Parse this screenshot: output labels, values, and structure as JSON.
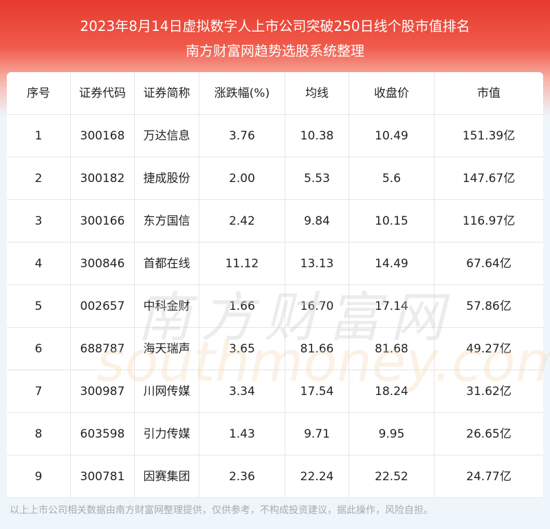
{
  "header": {
    "title": "2023年8月14日虚拟数字人上市公司突破250日线个股市值排名",
    "subtitle": "南方财富网趋势选股系统整理"
  },
  "table": {
    "columns": [
      "序号",
      "证券代码",
      "证券简称",
      "涨跌幅(%)",
      "均线",
      "收盘价",
      "市值"
    ],
    "rows": [
      [
        "1",
        "300168",
        "万达信息",
        "3.76",
        "10.38",
        "10.49",
        "151.39亿"
      ],
      [
        "2",
        "300182",
        "捷成股份",
        "2.00",
        "5.53",
        "5.6",
        "147.67亿"
      ],
      [
        "3",
        "300166",
        "东方国信",
        "2.42",
        "9.84",
        "10.15",
        "116.97亿"
      ],
      [
        "4",
        "300846",
        "首都在线",
        "11.12",
        "13.13",
        "14.49",
        "67.64亿"
      ],
      [
        "5",
        "002657",
        "中科金财",
        "1.66",
        "16.70",
        "17.14",
        "57.86亿"
      ],
      [
        "6",
        "688787",
        "海天瑞声",
        "3.65",
        "81.66",
        "81.68",
        "49.27亿"
      ],
      [
        "7",
        "300987",
        "川网传媒",
        "3.34",
        "17.54",
        "18.24",
        "31.62亿"
      ],
      [
        "8",
        "603598",
        "引力传媒",
        "1.43",
        "9.71",
        "9.95",
        "26.65亿"
      ],
      [
        "9",
        "300781",
        "因赛集团",
        "2.36",
        "22.24",
        "22.52",
        "24.77亿"
      ]
    ]
  },
  "watermark": {
    "cn": "南方财富网",
    "en": "southmoney.com"
  },
  "footer": {
    "note": "以上上市公司相关数据由南方财富网整理提供，仅供参考，不构成投资建议，据此操作，风险自担。"
  }
}
